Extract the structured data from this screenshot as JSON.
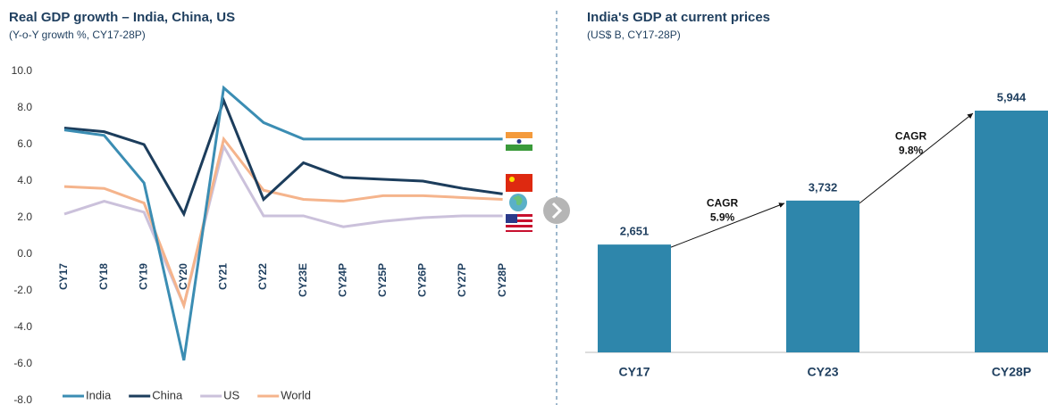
{
  "chart_data": [
    {
      "type": "line",
      "title": "Real GDP growth – India, China, US",
      "subtitle": "(Y-o-Y growth %, CY17-28P)",
      "categories": [
        "CY17",
        "CY18",
        "CY19",
        "CY20",
        "CY21",
        "CY22",
        "CY23E",
        "CY24P",
        "CY25P",
        "CY26P",
        "CY27P",
        "CY28P"
      ],
      "series": [
        {
          "name": "India",
          "color": "#3b8db3",
          "values": [
            6.8,
            6.5,
            3.9,
            -5.8,
            9.1,
            7.2,
            6.3,
            6.3,
            6.3,
            6.3,
            6.3,
            6.3
          ]
        },
        {
          "name": "China",
          "color": "#1c3d5c",
          "values": [
            6.9,
            6.7,
            6.0,
            2.2,
            8.4,
            3.0,
            5.0,
            4.2,
            4.1,
            4.0,
            3.6,
            3.3
          ]
        },
        {
          "name": "US",
          "color": "#cbc1db",
          "values": [
            2.2,
            2.9,
            2.3,
            -2.8,
            5.9,
            2.1,
            2.1,
            1.5,
            1.8,
            2.0,
            2.1,
            2.1
          ]
        },
        {
          "name": "World",
          "color": "#f5b48c",
          "values": [
            3.7,
            3.6,
            2.8,
            -2.8,
            6.3,
            3.5,
            3.0,
            2.9,
            3.2,
            3.2,
            3.1,
            3.0
          ]
        }
      ],
      "ylim": [
        -8,
        10
      ],
      "yticks": [
        {
          "value": 10,
          "label": "10.0"
        },
        {
          "value": 8,
          "label": "8.0"
        },
        {
          "value": 6,
          "label": "6.0"
        },
        {
          "value": 4,
          "label": "4.0"
        },
        {
          "value": 2,
          "label": "2.0"
        },
        {
          "value": 0,
          "label": "0.0"
        },
        {
          "value": -2,
          "label": "-2.0"
        },
        {
          "value": -4,
          "label": "-4.0"
        },
        {
          "value": -6,
          "label": "-6.0"
        },
        {
          "value": -8,
          "label": "-8.0"
        }
      ],
      "legend": "bottom"
    },
    {
      "type": "bar",
      "title": "India's GDP at current prices",
      "subtitle": "(US$ B, CY17-28P)",
      "categories": [
        "CY17",
        "CY23",
        "CY28P"
      ],
      "values": [
        2651,
        3732,
        5944
      ],
      "value_labels": [
        "2,651",
        "3,732",
        "5,944"
      ],
      "color": "#2e86ab",
      "annotations": [
        {
          "label": "CAGR",
          "rate": "5.9%"
        },
        {
          "label": "CAGR",
          "rate": "9.8%"
        }
      ]
    }
  ]
}
